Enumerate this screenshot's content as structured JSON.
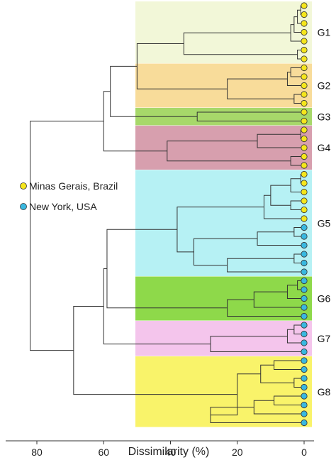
{
  "chart_data": {
    "type": "dendrogram",
    "xlabel": "Dissimilarity (%)",
    "x_ticks": [
      80,
      60,
      40,
      20,
      0
    ],
    "x_range": [
      88,
      -2
    ],
    "legend": [
      {
        "label": "Minas Gerais, Brazil",
        "color": "#f5e61c"
      },
      {
        "label": "New York, USA",
        "color": "#39b8e0"
      }
    ],
    "groups": [
      {
        "name": "G1",
        "color": "#f2f7d8",
        "first_leaf": 0,
        "last_leaf": 6
      },
      {
        "name": "G2",
        "color": "#f8dc9a",
        "first_leaf": 7,
        "last_leaf": 11
      },
      {
        "name": "G3",
        "color": "#a7d86a",
        "first_leaf": 12,
        "last_leaf": 13
      },
      {
        "name": "G4",
        "color": "#d79fae",
        "first_leaf": 14,
        "last_leaf": 18
      },
      {
        "name": "G5",
        "color": "#b6f1f4",
        "first_leaf": 19,
        "last_leaf": 30
      },
      {
        "name": "G6",
        "color": "#8ed94a",
        "first_leaf": 31,
        "last_leaf": 35
      },
      {
        "name": "G7",
        "color": "#f4c5ec",
        "first_leaf": 36,
        "last_leaf": 39
      },
      {
        "name": "G8",
        "color": "#f9f36a",
        "first_leaf": 40,
        "last_leaf": 47
      }
    ],
    "leaves": [
      "MG",
      "MG",
      "MG",
      "MG",
      "MG",
      "MG",
      "MG",
      "MG",
      "MG",
      "MG",
      "MG",
      "MG",
      "MG",
      "MG",
      "MG",
      "MG",
      "MG",
      "MG",
      "MG",
      "MG",
      "MG",
      "MG",
      "MG",
      "MG",
      "MG",
      "NY",
      "NY",
      "NY",
      "NY",
      "NY",
      "NY",
      "NY",
      "NY",
      "NY",
      "NY",
      "NY",
      "NY",
      "NY",
      "NY",
      "NY",
      "NY",
      "NY",
      "NY",
      "NY",
      "NY",
      "NY",
      "NY",
      "NY"
    ],
    "tree": [
      [
        [
          [
            [
              [
                [
                  [
                    0,
                    1,
                    2
                  ],
                  3,
                  4
                ],
                5
              ],
              6,
              "h:36"
            ],
            "h:50"
          ],
          [
            [
              [
                [
                  7,
                  8
                ],
                9
              ],
              [
                10,
                11
              ]
            ],
            "h:58"
          ]
        ],
        [
          [
            12,
            13,
            "h:32"
          ],
          "h:63"
        ]
      ],
      [
        [
          [
            14,
            15,
            16
          ],
          [
            17,
            18
          ]
        ],
        "h:82"
      ]
    ]
  }
}
